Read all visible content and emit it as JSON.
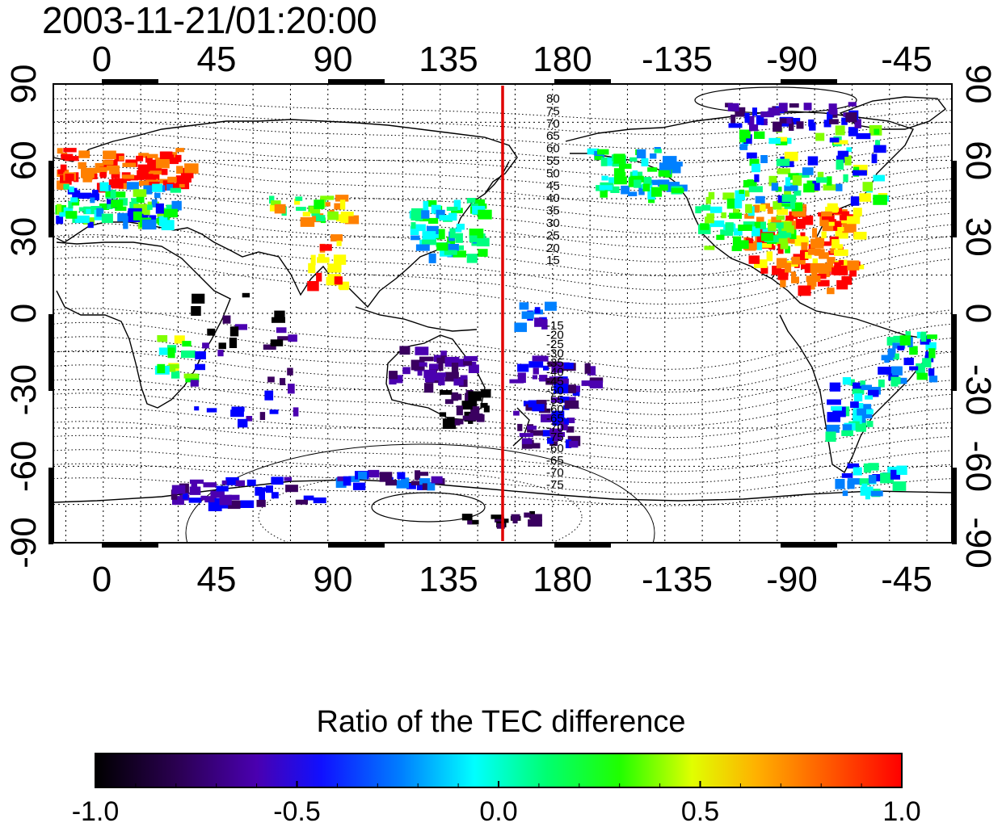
{
  "title": "2003-11-21/01:20:00",
  "map": {
    "longitude_ticks": [
      "0",
      "45",
      "90",
      "135",
      "180",
      "-135",
      "-90",
      "-45"
    ],
    "latitude_ticks": [
      "90",
      "60",
      "30",
      "0",
      "-30",
      "-60",
      "-90"
    ],
    "meridian_marker_longitude": 160,
    "marker_color": "#e00000",
    "contour_labels_north": [
      "80",
      "75",
      "70",
      "65",
      "60",
      "55",
      "50",
      "45",
      "40",
      "35",
      "30",
      "25",
      "20",
      "15"
    ],
    "contour_labels_south": [
      "-15",
      "-20",
      "-25",
      "-30",
      "-35",
      "-40",
      "-45",
      "-50",
      "-55",
      "-60",
      "-65",
      "-70",
      "-75"
    ],
    "contour_labels_far_south": [
      "-60",
      "-65",
      "-70",
      "-75"
    ],
    "grid": true
  },
  "colorbar": {
    "title": "Ratio of the TEC difference",
    "ticks": [
      "-1.0",
      "-0.5",
      "0.0",
      "0.5",
      "1.0"
    ],
    "range": [
      -1.0,
      1.0
    ],
    "colormap": [
      "#000000",
      "#3a0060",
      "#4b00b0",
      "#0000ff",
      "#0080ff",
      "#00ffff",
      "#00ff80",
      "#00ff00",
      "#80ff00",
      "#ffff00",
      "#ff8000",
      "#ff0000"
    ]
  }
}
